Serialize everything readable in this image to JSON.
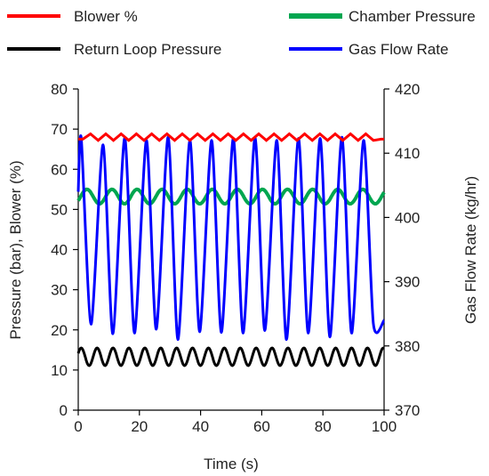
{
  "chart_data": {
    "type": "line",
    "title": "",
    "xlabel": "Time (s)",
    "ylabel_left": "Pressure (bar),  Blower (%)",
    "ylabel_right": "Gas Flow Rate (kg/hr)",
    "xlim": [
      0,
      100
    ],
    "ylim_left": [
      0,
      80
    ],
    "ylim_right": [
      370,
      420
    ],
    "x_ticks": [
      "0",
      "20",
      "40",
      "60",
      "80",
      "100"
    ],
    "y_left_ticks": [
      "0",
      "10",
      "20",
      "30",
      "40",
      "50",
      "60",
      "70",
      "80"
    ],
    "y_right_ticks": [
      "370",
      "380",
      "390",
      "400",
      "410",
      "420"
    ],
    "grid": false,
    "legend_position": "top",
    "series": [
      {
        "name": "Blower %",
        "axis": "left",
        "color": "#ff0000",
        "x": [
          0,
          1.5,
          4,
          6.5,
          9,
          11.5,
          14,
          16.5,
          19,
          21.5,
          24,
          26.5,
          29,
          31.5,
          34,
          36.5,
          39,
          41.5,
          44,
          46.5,
          49,
          51.5,
          54,
          56.5,
          59,
          61.5,
          64,
          66.5,
          69,
          71.5,
          74,
          76.5,
          79,
          81.5,
          84,
          86.5,
          89,
          91.5,
          94,
          96.5,
          99,
          100
        ],
        "values": [
          67.5,
          67.5,
          68.8,
          67.2,
          68.8,
          67.2,
          68.8,
          67.2,
          68.8,
          67.2,
          68.8,
          67.2,
          68.8,
          67.2,
          68.8,
          67.2,
          68.8,
          67.2,
          68.8,
          67.2,
          68.8,
          67.2,
          68.8,
          67.2,
          68.8,
          67.2,
          68.8,
          67.2,
          68.8,
          67.2,
          68.8,
          67.2,
          68.8,
          67.2,
          68.8,
          67.2,
          68.8,
          67.2,
          68.8,
          67.2,
          67.5,
          67.5
        ]
      },
      {
        "name": "Chamber Pressure",
        "axis": "left",
        "color": "#00a650",
        "period": 8.2,
        "x": [
          0,
          100
        ],
        "mean": 53.2,
        "amplitude": 1.8,
        "values": [
          52.5,
          55.0
        ]
      },
      {
        "name": "Return Loop Pressure",
        "axis": "left",
        "color": "#000000",
        "period": 5.2,
        "x": [
          0,
          100
        ],
        "mean": 13.3,
        "amplitude": 2.2,
        "values": [
          12.8,
          15.3
        ]
      },
      {
        "name": "Gas Flow Rate",
        "axis": "right",
        "color": "#0000ff",
        "period": 7.1,
        "x": [
          0,
          100
        ],
        "peaks": [
          412.3,
          411.3,
          412.4,
          412.0,
          412.5,
          412.0,
          412.0,
          412.3,
          412.4,
          412.0,
          412.3,
          412.3,
          412.5,
          412.0
        ],
        "troughs": [
          383.4,
          381.9,
          382.0,
          382.6,
          381.0,
          382.2,
          382.1,
          382.0,
          382.4,
          381.0,
          382.0,
          381.4,
          382.0,
          383.5
        ]
      }
    ]
  }
}
